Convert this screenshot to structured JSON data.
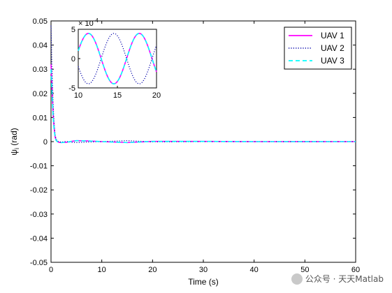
{
  "chart_data": [
    {
      "type": "line",
      "xlabel": "Time (s)",
      "ylabel": "ψ",
      "ylabel_sub": "i",
      "ylabel_unit": " (rad)",
      "xlim": [
        0,
        60
      ],
      "ylim": [
        -0.05,
        0.05
      ],
      "xticks": [
        "0",
        "10",
        "20",
        "30",
        "40",
        "50",
        "60"
      ],
      "yticks": [
        "-0.05",
        "-0.04",
        "-0.03",
        "-0.02",
        "-0.01",
        "0",
        "0.01",
        "0.02",
        "0.03",
        "0.04",
        "0.05"
      ],
      "grid": false,
      "legend": "top-right",
      "series": [
        {
          "name": "UAV 1",
          "color": "#ff00ff",
          "style": "solid",
          "x": [
            0,
            0.2,
            0.4,
            0.6,
            0.8,
            1.0,
            1.3,
            1.6,
            2.0,
            3,
            4,
            5,
            7,
            10,
            15,
            20,
            30,
            40,
            50,
            60
          ],
          "y": [
            0.032,
            0.022,
            0.012,
            0.006,
            0.002,
            0.0006,
            -0.0001,
            -0.0003,
            -0.0004,
            -0.0003,
            0.0001,
            0.0004,
            0.0003,
            0.0,
            -0.0004,
            0.0001,
            0.0001,
            0.0,
            0.0,
            0.0
          ]
        },
        {
          "name": "UAV 2",
          "color": "#0000aa",
          "style": "dotted",
          "x": [
            0,
            0.2,
            0.4,
            0.6,
            0.8,
            1.0,
            1.3,
            1.6,
            2.0,
            3,
            4,
            5,
            7,
            10,
            15,
            20,
            30,
            40,
            50,
            60
          ],
          "y": [
            0.048,
            0.03,
            0.016,
            0.008,
            0.003,
            0.001,
            0.0002,
            -0.0001,
            -0.0002,
            0.0001,
            -0.0003,
            -0.0004,
            -0.0002,
            0.0,
            0.0004,
            -0.0001,
            0.0,
            0.0,
            0.0,
            0.0
          ]
        },
        {
          "name": "UAV 3",
          "color": "#00ffff",
          "style": "dashed",
          "x": [
            0,
            0.2,
            0.4,
            0.6,
            0.8,
            1.0,
            1.3,
            1.6,
            2.0,
            3,
            4,
            5,
            7,
            10,
            15,
            20,
            30,
            40,
            50,
            60
          ],
          "y": [
            0.03,
            0.02,
            0.011,
            0.005,
            0.002,
            0.0005,
            -0.0001,
            -0.0003,
            -0.0004,
            -0.0003,
            0.0001,
            0.0004,
            0.0003,
            0.0,
            -0.0004,
            0.0001,
            0.0001,
            0.0,
            0.0,
            0.0
          ]
        }
      ]
    },
    {
      "type": "line",
      "role": "inset",
      "xlim": [
        10,
        20
      ],
      "ylim": [
        -5,
        5
      ],
      "exponent_label": "× 10",
      "exponent_power": "-4",
      "xticks": [
        "10",
        "15",
        "20"
      ],
      "yticks": [
        "-5",
        "0",
        "5"
      ],
      "series": [
        {
          "name": "UAV 1",
          "color": "#ff00ff",
          "style": "solid",
          "amplitude": 4.3,
          "period": 6.5,
          "phase": 11.3
        },
        {
          "name": "UAV 2",
          "color": "#0000aa",
          "style": "dotted",
          "amplitude": 4.3,
          "period": 6.5,
          "phase": 14.55
        },
        {
          "name": "UAV 3",
          "color": "#00ffff",
          "style": "dashed",
          "amplitude": 4.3,
          "period": 6.5,
          "phase": 11.3
        }
      ]
    }
  ],
  "watermark": {
    "text": "公众号 · 天天Matlab",
    "icon": "wechat-logo-icon"
  }
}
